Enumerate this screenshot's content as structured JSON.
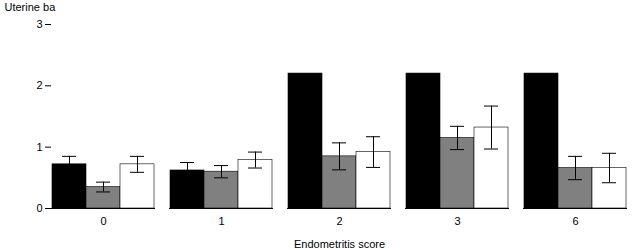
{
  "chart_data": {
    "type": "bar",
    "xlabel": "Endometritis score",
    "ylabel": "Uterine ba",
    "categories": [
      "0",
      "1",
      "2",
      "3",
      "6"
    ],
    "series": [
      {
        "color": "#000000",
        "values": [
          0.72,
          0.62,
          2.2,
          2.2,
          2.2
        ],
        "errors": [
          0.13,
          0.13,
          0.0,
          0.0,
          0.0
        ]
      },
      {
        "color": "#808080",
        "values": [
          0.35,
          0.6,
          0.85,
          1.15,
          0.66
        ],
        "errors": [
          0.08,
          0.1,
          0.22,
          0.19,
          0.19
        ]
      },
      {
        "color": "#ffffff",
        "values": [
          0.72,
          0.79,
          0.92,
          1.32,
          0.66
        ],
        "errors": [
          0.13,
          0.13,
          0.25,
          0.35,
          0.24
        ]
      }
    ],
    "ylim": [
      0,
      3
    ],
    "yticks": [
      0,
      1,
      2,
      3
    ]
  }
}
